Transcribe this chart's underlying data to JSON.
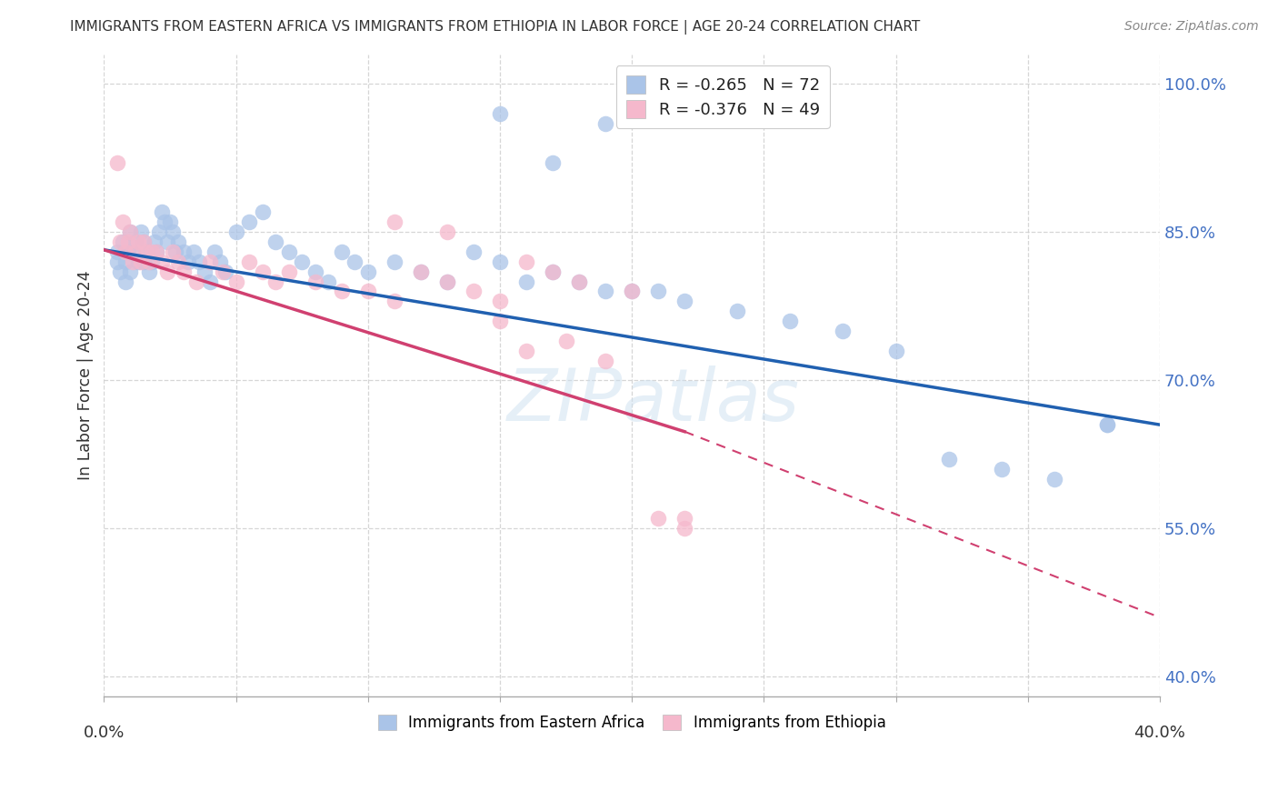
{
  "title": "IMMIGRANTS FROM EASTERN AFRICA VS IMMIGRANTS FROM ETHIOPIA IN LABOR FORCE | AGE 20-24 CORRELATION CHART",
  "source": "Source: ZipAtlas.com",
  "ylabel": "In Labor Force | Age 20-24",
  "ylabel_ticks": [
    "100.0%",
    "85.0%",
    "70.0%",
    "55.0%",
    "40.0%"
  ],
  "ylabel_values": [
    1.0,
    0.85,
    0.7,
    0.55,
    0.4
  ],
  "xmin": 0.0,
  "xmax": 0.4,
  "ymin": 0.38,
  "ymax": 1.03,
  "blue_R": -0.265,
  "blue_N": 72,
  "pink_R": -0.376,
  "pink_N": 49,
  "blue_color": "#aac4e8",
  "pink_color": "#f5b8cc",
  "blue_line_color": "#2060b0",
  "pink_line_color": "#d04070",
  "watermark": "ZIPatlas",
  "legend_label_blue": "R = -0.265   N = 72",
  "legend_label_pink": "R = -0.376   N = 49",
  "blue_legend": "Immigrants from Eastern Africa",
  "pink_legend": "Immigrants from Ethiopia",
  "blue_line_x0": 0.0,
  "blue_line_y0": 0.832,
  "blue_line_x1": 0.4,
  "blue_line_y1": 0.655,
  "pink_line_x0": 0.0,
  "pink_line_y0": 0.832,
  "pink_line_x1_solid": 0.22,
  "pink_line_y1_solid": 0.648,
  "pink_line_x1_dash": 0.4,
  "pink_line_y1_dash": 0.46,
  "blue_scatter_x": [
    0.005,
    0.005,
    0.006,
    0.007,
    0.008,
    0.008,
    0.009,
    0.01,
    0.01,
    0.011,
    0.012,
    0.013,
    0.014,
    0.015,
    0.015,
    0.016,
    0.017,
    0.018,
    0.019,
    0.02,
    0.021,
    0.022,
    0.023,
    0.024,
    0.025,
    0.026,
    0.027,
    0.028,
    0.03,
    0.032,
    0.034,
    0.036,
    0.038,
    0.04,
    0.042,
    0.044,
    0.046,
    0.05,
    0.055,
    0.06,
    0.065,
    0.07,
    0.075,
    0.08,
    0.085,
    0.09,
    0.095,
    0.1,
    0.11,
    0.12,
    0.13,
    0.14,
    0.15,
    0.16,
    0.17,
    0.18,
    0.19,
    0.2,
    0.21,
    0.22,
    0.24,
    0.26,
    0.28,
    0.3,
    0.32,
    0.34,
    0.36,
    0.38,
    0.19,
    0.15,
    0.17,
    0.38
  ],
  "blue_scatter_y": [
    0.83,
    0.82,
    0.81,
    0.84,
    0.82,
    0.8,
    0.83,
    0.85,
    0.81,
    0.83,
    0.84,
    0.82,
    0.85,
    0.84,
    0.82,
    0.83,
    0.81,
    0.82,
    0.84,
    0.83,
    0.85,
    0.87,
    0.86,
    0.84,
    0.86,
    0.85,
    0.83,
    0.84,
    0.83,
    0.82,
    0.83,
    0.82,
    0.81,
    0.8,
    0.83,
    0.82,
    0.81,
    0.85,
    0.86,
    0.87,
    0.84,
    0.83,
    0.82,
    0.81,
    0.8,
    0.83,
    0.82,
    0.81,
    0.82,
    0.81,
    0.8,
    0.83,
    0.82,
    0.8,
    0.81,
    0.8,
    0.79,
    0.79,
    0.79,
    0.78,
    0.77,
    0.76,
    0.75,
    0.73,
    0.62,
    0.61,
    0.6,
    0.655,
    0.96,
    0.97,
    0.92,
    0.655
  ],
  "pink_scatter_x": [
    0.005,
    0.006,
    0.007,
    0.008,
    0.009,
    0.01,
    0.011,
    0.012,
    0.013,
    0.014,
    0.015,
    0.016,
    0.017,
    0.018,
    0.02,
    0.022,
    0.024,
    0.026,
    0.028,
    0.03,
    0.035,
    0.04,
    0.045,
    0.05,
    0.055,
    0.06,
    0.065,
    0.07,
    0.08,
    0.09,
    0.1,
    0.11,
    0.12,
    0.13,
    0.14,
    0.15,
    0.16,
    0.17,
    0.18,
    0.2,
    0.21,
    0.22,
    0.11,
    0.13,
    0.15,
    0.16,
    0.175,
    0.19,
    0.22
  ],
  "pink_scatter_y": [
    0.92,
    0.84,
    0.86,
    0.83,
    0.84,
    0.85,
    0.82,
    0.83,
    0.84,
    0.82,
    0.84,
    0.83,
    0.82,
    0.83,
    0.83,
    0.82,
    0.81,
    0.83,
    0.82,
    0.81,
    0.8,
    0.82,
    0.81,
    0.8,
    0.82,
    0.81,
    0.8,
    0.81,
    0.8,
    0.79,
    0.79,
    0.78,
    0.81,
    0.8,
    0.79,
    0.78,
    0.82,
    0.81,
    0.8,
    0.79,
    0.56,
    0.55,
    0.86,
    0.85,
    0.76,
    0.73,
    0.74,
    0.72,
    0.56
  ]
}
